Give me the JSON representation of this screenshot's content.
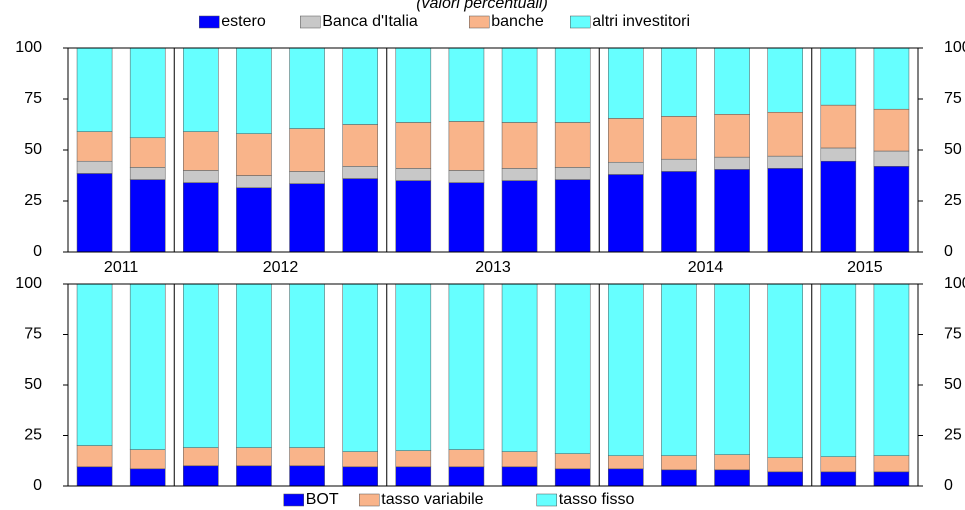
{
  "chart_data": [
    {
      "type": "stacked_bar",
      "subtitle": "(valori percentuali)",
      "legend_position": "top",
      "categories": [
        "2011",
        null,
        "2012",
        null,
        null,
        null,
        "2013",
        null,
        null,
        null,
        "2014",
        null,
        null,
        null,
        "2015",
        null
      ],
      "ylim": [
        0,
        100
      ],
      "yticks": [
        0,
        25,
        50,
        75,
        100
      ],
      "series": [
        {
          "name": "estero",
          "color": "#0000ff",
          "values": [
            38.5,
            35.5,
            34,
            31.5,
            33.5,
            36,
            35,
            34,
            35,
            35.5,
            38,
            39.5,
            40.5,
            41,
            44.5,
            42
          ]
        },
        {
          "name": "Banca d'Italia",
          "color": "#c8c8c8",
          "values": [
            6,
            6,
            6,
            6,
            6,
            6,
            6,
            6,
            6,
            6,
            6,
            6,
            6,
            6,
            6.5,
            7.5
          ]
        },
        {
          "name": "banche",
          "color": "#f9b48a",
          "values": [
            14.5,
            14.5,
            19,
            20.5,
            21,
            20.5,
            22.5,
            24,
            22.5,
            22,
            21.5,
            21,
            21,
            21.5,
            21,
            20.5
          ]
        },
        {
          "name": "altri investitori",
          "color": "#66ffff",
          "values": [
            41,
            44,
            41,
            42,
            39.5,
            37.5,
            36.5,
            36,
            36.5,
            36.5,
            34.5,
            33.5,
            32.5,
            31.5,
            28,
            30
          ]
        }
      ]
    },
    {
      "type": "stacked_bar",
      "legend_position": "bottom",
      "ylim": [
        0,
        100
      ],
      "yticks": [
        0,
        25,
        50,
        75,
        100
      ],
      "series": [
        {
          "name": "BOT",
          "color": "#0000ff",
          "values": [
            9.5,
            8.5,
            10,
            10,
            10,
            9.5,
            9.5,
            9.5,
            9.5,
            8.5,
            8.5,
            8,
            8,
            7,
            7,
            7
          ]
        },
        {
          "name": "tasso variabile",
          "color": "#f9b48a",
          "values": [
            10.5,
            9.5,
            9,
            9,
            9,
            7.5,
            8,
            8.5,
            7.5,
            7.5,
            6.5,
            7,
            7.5,
            7,
            7.5,
            8
          ]
        },
        {
          "name": "tasso fisso",
          "color": "#66ffff",
          "values": [
            80,
            82,
            81,
            81,
            81,
            83,
            82.5,
            82,
            83,
            84,
            85,
            85,
            84.5,
            86,
            85.5,
            85
          ]
        }
      ]
    }
  ]
}
